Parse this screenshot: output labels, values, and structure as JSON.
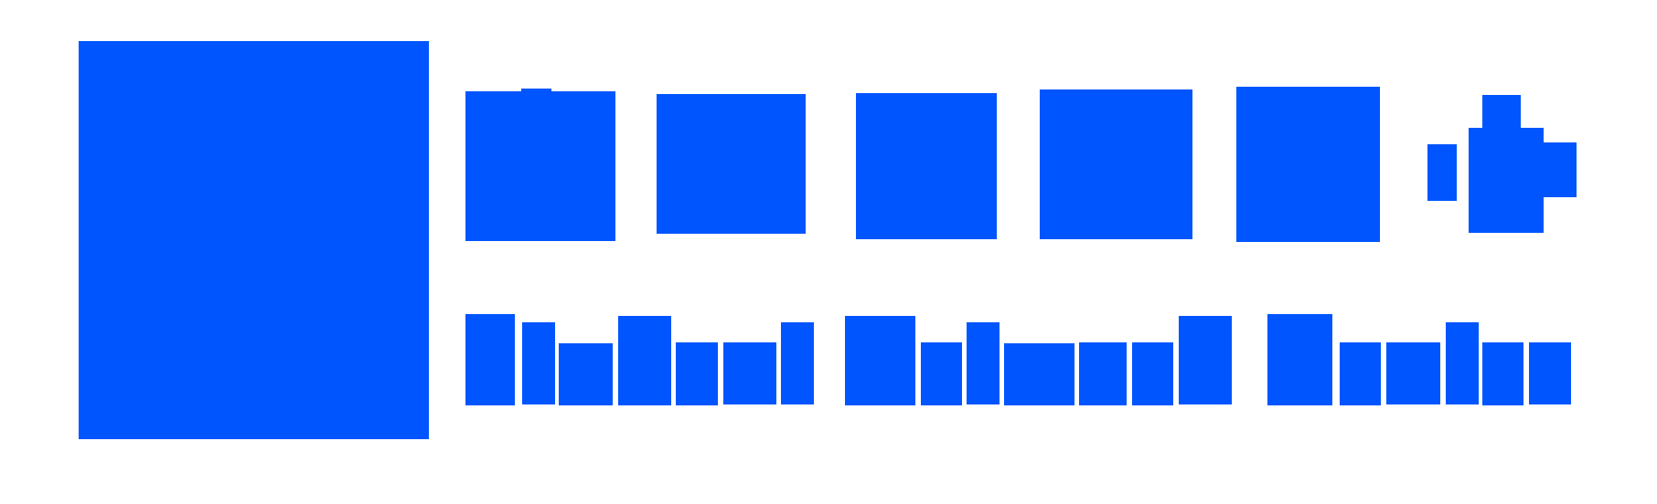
{
  "logo": {
    "accent_color": "#0055FF",
    "background_color": "#FFFFFF",
    "icon_name": "solid-square-logo-mark"
  }
}
